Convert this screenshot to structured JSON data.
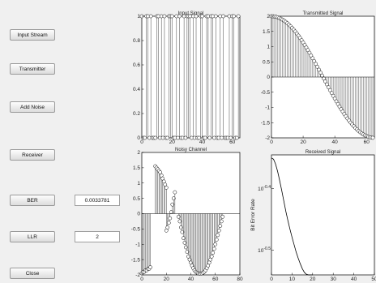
{
  "controls": {
    "input_stream": "Input Stream",
    "transmitter": "Transmitter",
    "add_noise": "Add Noise",
    "receiver": "Receiver",
    "ber_label": "BER",
    "ber_value": "0.0033781",
    "llr_label": "LLR",
    "llr_value": "2",
    "close": "Close"
  },
  "chart_data": [
    {
      "id": "input",
      "type": "stem",
      "title": "Input Signal",
      "xlim": [
        0,
        65
      ],
      "ylim": [
        0,
        1
      ],
      "xticks": [
        0,
        20,
        40,
        60
      ],
      "yticks": [
        0,
        0.2,
        0.4,
        0.6,
        0.8,
        1
      ],
      "ytick_labels": [
        "0",
        "0.2",
        "0.4",
        "0.6",
        "0.8",
        "1"
      ],
      "bits": [
        1,
        0,
        0,
        1,
        1,
        0,
        1,
        0,
        0,
        0,
        1,
        1,
        0,
        1,
        0,
        1,
        0,
        0,
        1,
        1,
        1,
        0,
        0,
        1,
        0,
        1,
        0,
        0,
        1,
        0,
        1,
        1,
        1,
        0,
        1,
        0,
        1,
        0,
        0,
        1,
        1,
        0,
        0,
        1,
        1,
        0,
        1,
        1,
        0,
        1,
        0,
        0,
        1,
        0,
        1,
        0,
        0,
        0,
        1,
        0,
        1,
        1,
        0,
        0,
        1
      ]
    },
    {
      "id": "transmitted",
      "type": "stem",
      "title": "Transmitted Signal",
      "xlim": [
        0,
        65
      ],
      "ylim": [
        -2,
        2
      ],
      "xticks": [
        0,
        20,
        40,
        60
      ],
      "yticks": [
        -2,
        -1.5,
        -1,
        -0.5,
        0,
        0.5,
        1,
        1.5,
        2
      ],
      "ytick_labels": [
        "-2",
        "-1.5",
        "-1",
        "-0.5",
        "0",
        "0.5",
        "1",
        "1.5",
        "2"
      ],
      "n": 65,
      "cycle": 130,
      "amplitude": 2
    },
    {
      "id": "noisy",
      "type": "stem",
      "title": "Noisy Channel",
      "xlim": [
        0,
        80
      ],
      "ylim": [
        -2,
        2
      ],
      "xticks": [
        0,
        20,
        40,
        60,
        80
      ],
      "yticks": [
        -2,
        -1.5,
        -1,
        -0.5,
        0,
        0.5,
        1,
        1.5,
        2
      ],
      "ytick_labels": [
        "-2",
        "-1.5",
        "-1",
        "-0.5",
        "0",
        "0.5",
        "1",
        "1.5",
        "2"
      ],
      "segments": [
        {
          "x": [
            0,
            1,
            2,
            3,
            4,
            5,
            6,
            7
          ],
          "y": [
            -1.95,
            -1.9,
            -1.9,
            -1.85,
            -1.85,
            -1.8,
            -1.8,
            -1.75
          ]
        },
        {
          "x": [
            11,
            12,
            13,
            14,
            15,
            16,
            17,
            18,
            19,
            20
          ],
          "y": [
            1.55,
            1.5,
            1.45,
            1.4,
            1.35,
            1.25,
            1.15,
            1.05,
            0.95,
            0.85
          ]
        },
        {
          "x": [
            20,
            21,
            22,
            23,
            24,
            25,
            26,
            27
          ],
          "y": [
            -0.55,
            -0.45,
            -0.3,
            -0.15,
            0.05,
            0.3,
            0.5,
            0.7
          ]
        },
        {
          "x": [
            30,
            31,
            32,
            33,
            34,
            35,
            36,
            37,
            38,
            39,
            40,
            41,
            42,
            43,
            44,
            45,
            46,
            47,
            48,
            49,
            50,
            51,
            52,
            53,
            54,
            55,
            56,
            57,
            58,
            59,
            60,
            61,
            62,
            63,
            64,
            65,
            66
          ],
          "y": [
            -0.1,
            -0.25,
            -0.45,
            -0.6,
            -0.8,
            -0.95,
            -1.1,
            -1.25,
            -1.4,
            -1.5,
            -1.6,
            -1.7,
            -1.78,
            -1.85,
            -1.9,
            -1.93,
            -1.95,
            -1.96,
            -1.96,
            -1.95,
            -1.93,
            -1.9,
            -1.85,
            -1.78,
            -1.7,
            -1.6,
            -1.5,
            -1.4,
            -1.28,
            -1.15,
            -1.0,
            -0.85,
            -0.7,
            -0.55,
            -0.4,
            -0.25,
            -0.1
          ]
        }
      ]
    },
    {
      "id": "received",
      "type": "line",
      "title": "Received Signal",
      "ylabel": "Bit Error Rate",
      "xlim": [
        0,
        50
      ],
      "yscale": "log",
      "xticks": [
        0,
        10,
        20,
        30,
        40,
        50
      ],
      "ytick_labels": [
        "10^-0.4",
        "10^-0.5"
      ],
      "ytick_values": [
        -0.4,
        -0.5
      ],
      "ylim_log": [
        -0.54,
        -0.345
      ],
      "x": [
        0,
        1,
        2,
        3,
        4,
        5,
        6,
        7,
        8,
        9,
        10,
        11,
        12,
        13,
        14,
        15,
        16,
        17,
        18,
        19,
        20
      ],
      "y_log10": [
        -0.35,
        -0.352,
        -0.36,
        -0.372,
        -0.387,
        -0.403,
        -0.42,
        -0.437,
        -0.452,
        -0.466,
        -0.479,
        -0.491,
        -0.503,
        -0.513,
        -0.522,
        -0.53,
        -0.536,
        -0.539,
        -0.54,
        -0.54,
        -0.54
      ]
    }
  ]
}
